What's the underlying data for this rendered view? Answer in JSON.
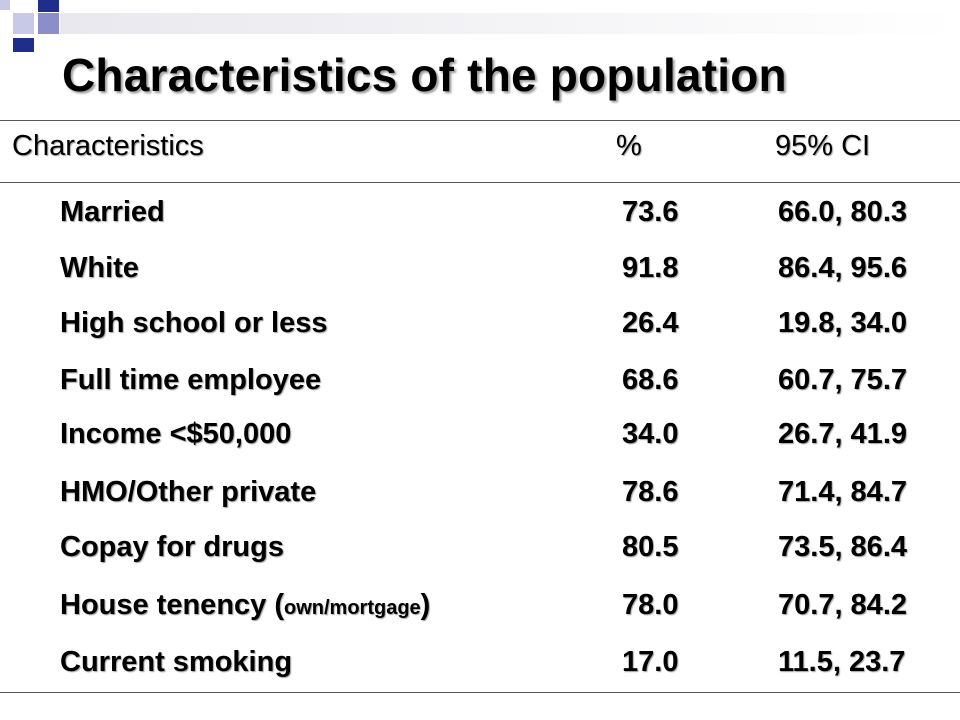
{
  "slide": {
    "title": "Characteristics of the population"
  },
  "table": {
    "headers": [
      "Characteristics",
      "%",
      "95% CI"
    ],
    "rows": [
      {
        "label": "Married",
        "pct": "73.6",
        "ci": "66.0, 80.3"
      },
      {
        "label": "White",
        "pct": "91.8",
        "ci": "86.4, 95.6"
      },
      {
        "label": "High school or less",
        "pct": "26.4",
        "ci": "19.8, 34.0"
      },
      {
        "label": "Full time employee",
        "pct": "68.6",
        "ci": "60.7, 75.7"
      },
      {
        "label": "Income <$50,000",
        "pct": "34.0",
        "ci": "26.7, 41.9"
      },
      {
        "label": "HMO/Other private",
        "pct": "78.6",
        "ci": "71.4, 84.7"
      },
      {
        "label": "Copay for drugs",
        "pct": "80.5",
        "ci": "73.5, 86.4"
      },
      {
        "label_main": "House tenency (",
        "label_small": "own/mortgage",
        "label_end": ")",
        "pct": "78.0",
        "ci": "70.7, 84.2"
      },
      {
        "label": "Current smoking",
        "pct": "17.0",
        "ci": "11.5, 23.7"
      }
    ]
  },
  "colors": {
    "title_text": "#000000",
    "decor_squares": [
      "#1f2e8a",
      "#8a8fcc",
      "#c7c9e6"
    ]
  }
}
